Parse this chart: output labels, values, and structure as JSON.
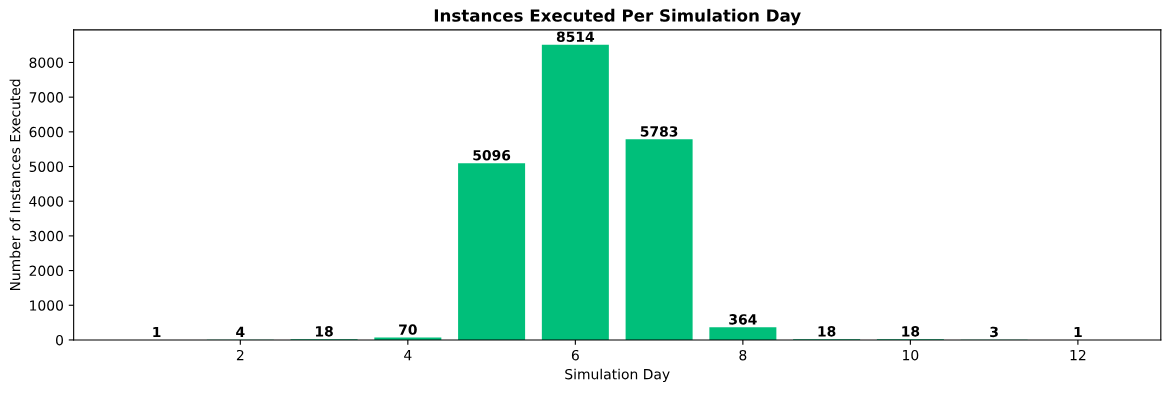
{
  "chart_data": {
    "type": "bar",
    "title": "Instances Executed Per Simulation Day",
    "xlabel": "Simulation Day",
    "ylabel": "Number of Instances Executed",
    "x": [
      1,
      2,
      3,
      4,
      5,
      6,
      7,
      8,
      9,
      10,
      11,
      12
    ],
    "values": [
      1,
      4,
      18,
      70,
      5096,
      8514,
      5783,
      364,
      18,
      18,
      3,
      1
    ],
    "color": "#00bf7a",
    "xlim": [
      0.01,
      12.99
    ],
    "xticks": [
      2,
      4,
      6,
      8,
      10,
      12
    ],
    "ylim": [
      0,
      8940
    ],
    "yticks": [
      0,
      1000,
      2000,
      3000,
      4000,
      5000,
      6000,
      7000,
      8000
    ],
    "data_labels": true,
    "grid": false,
    "legend": false
  }
}
